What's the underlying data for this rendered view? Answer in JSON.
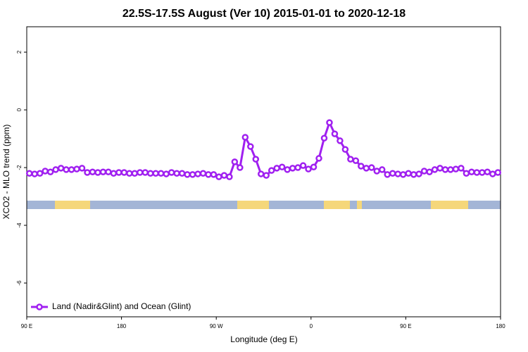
{
  "chart_data": {
    "type": "line",
    "title": "22.5S-17.5S August (Ver 10)   2015-01-01 to 2020-12-18",
    "xlabel": "Longitude (deg E)",
    "ylabel": "XCO2 - MLO trend (ppm)",
    "x": [
      92.5,
      97.5,
      102.5,
      107.5,
      112.5,
      117.5,
      122.5,
      127.5,
      132.5,
      137.5,
      142.5,
      147.5,
      152.5,
      157.5,
      162.5,
      167.5,
      172.5,
      177.5,
      182.5,
      187.5,
      192.5,
      197.5,
      202.5,
      207.5,
      212.5,
      217.5,
      222.5,
      227.5,
      232.5,
      237.5,
      242.5,
      247.5,
      252.5,
      257.5,
      262.5,
      267.5,
      272.5,
      277.5,
      282.5,
      287.5,
      292.5,
      297.5,
      302.5,
      307.5,
      312.5,
      317.5,
      322.5,
      327.5,
      332.5,
      337.5,
      342.5,
      347.5,
      352.5,
      357.5,
      362.5,
      367.5,
      372.5,
      377.5,
      382.5,
      387.5,
      392.5,
      397.5,
      402.5,
      407.5,
      412.5,
      417.5,
      422.5,
      427.5,
      432.5,
      437.5,
      442.5,
      447.5,
      452.5,
      457.5,
      462.5,
      467.5,
      472.5,
      477.5,
      482.5,
      487.5,
      492.5,
      497.5,
      502.5,
      507.5,
      512.5,
      517.5,
      522.5,
      527.5,
      532.5,
      537.5
    ],
    "series": [
      {
        "name": "Land (Nadir&Glint) and Ocean (Glint)",
        "color": "#a020f0",
        "values": [
          -2.2,
          -2.22,
          -2.2,
          -2.12,
          -2.15,
          -2.07,
          -2.02,
          -2.07,
          -2.07,
          -2.05,
          -2.02,
          -2.17,
          -2.15,
          -2.17,
          -2.15,
          -2.15,
          -2.2,
          -2.17,
          -2.17,
          -2.2,
          -2.2,
          -2.17,
          -2.17,
          -2.2,
          -2.2,
          -2.2,
          -2.22,
          -2.17,
          -2.2,
          -2.2,
          -2.24,
          -2.24,
          -2.22,
          -2.2,
          -2.24,
          -2.24,
          -2.32,
          -2.27,
          -2.32,
          -1.8,
          -2.0,
          -0.95,
          -1.27,
          -1.71,
          -2.22,
          -2.27,
          -2.1,
          -2.02,
          -1.98,
          -2.07,
          -2.02,
          -2.0,
          -1.93,
          -2.05,
          -1.98,
          -1.68,
          -0.98,
          -0.44,
          -0.83,
          -1.07,
          -1.37,
          -1.71,
          -1.76,
          -1.95,
          -2.02,
          -2.0,
          -2.12,
          -2.07,
          -2.24,
          -2.2,
          -2.22,
          -2.24,
          -2.2,
          -2.24,
          -2.22,
          -2.12,
          -2.15,
          -2.07,
          -2.02,
          -2.07,
          -2.07,
          -2.05,
          -2.02,
          -2.2,
          -2.15,
          -2.17,
          -2.17,
          -2.15,
          -2.22,
          -2.17
        ]
      }
    ],
    "xlim": [
      90,
      540
    ],
    "xticks": [
      {
        "value": 90,
        "label": "90 E"
      },
      {
        "value": 180,
        "label": "180"
      },
      {
        "value": 270,
        "label": "90 W"
      },
      {
        "value": 360,
        "label": "0"
      },
      {
        "value": 450,
        "label": "90 E"
      },
      {
        "value": 540,
        "label": "180"
      }
    ],
    "ylim": [
      -7.17,
      2.88
    ],
    "yticks": [
      2,
      0,
      -2,
      -4,
      -6
    ],
    "legend": "bottom-left"
  }
}
